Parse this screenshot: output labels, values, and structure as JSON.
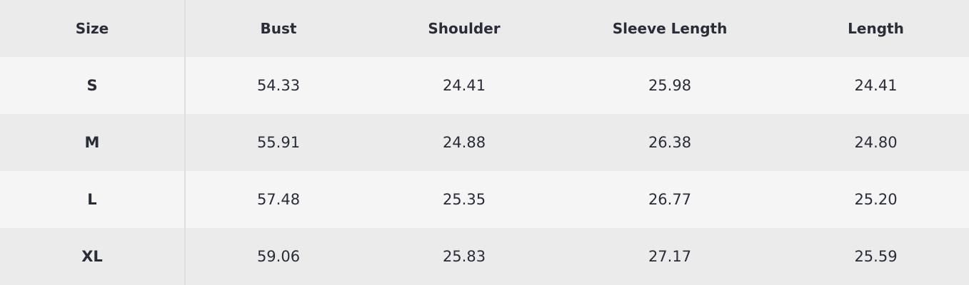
{
  "table": {
    "header": [
      "Size",
      "Bust",
      "Shoulder",
      "Sleeve Length",
      "Length"
    ],
    "rows": [
      [
        "S",
        "54.33",
        "24.41",
        "25.98",
        "24.41"
      ],
      [
        "M",
        "55.91",
        "24.88",
        "26.38",
        "24.80"
      ],
      [
        "L",
        "57.48",
        "25.35",
        "26.77",
        "25.20"
      ],
      [
        "XL",
        "59.06",
        "25.83",
        "27.17",
        "25.59"
      ]
    ]
  }
}
